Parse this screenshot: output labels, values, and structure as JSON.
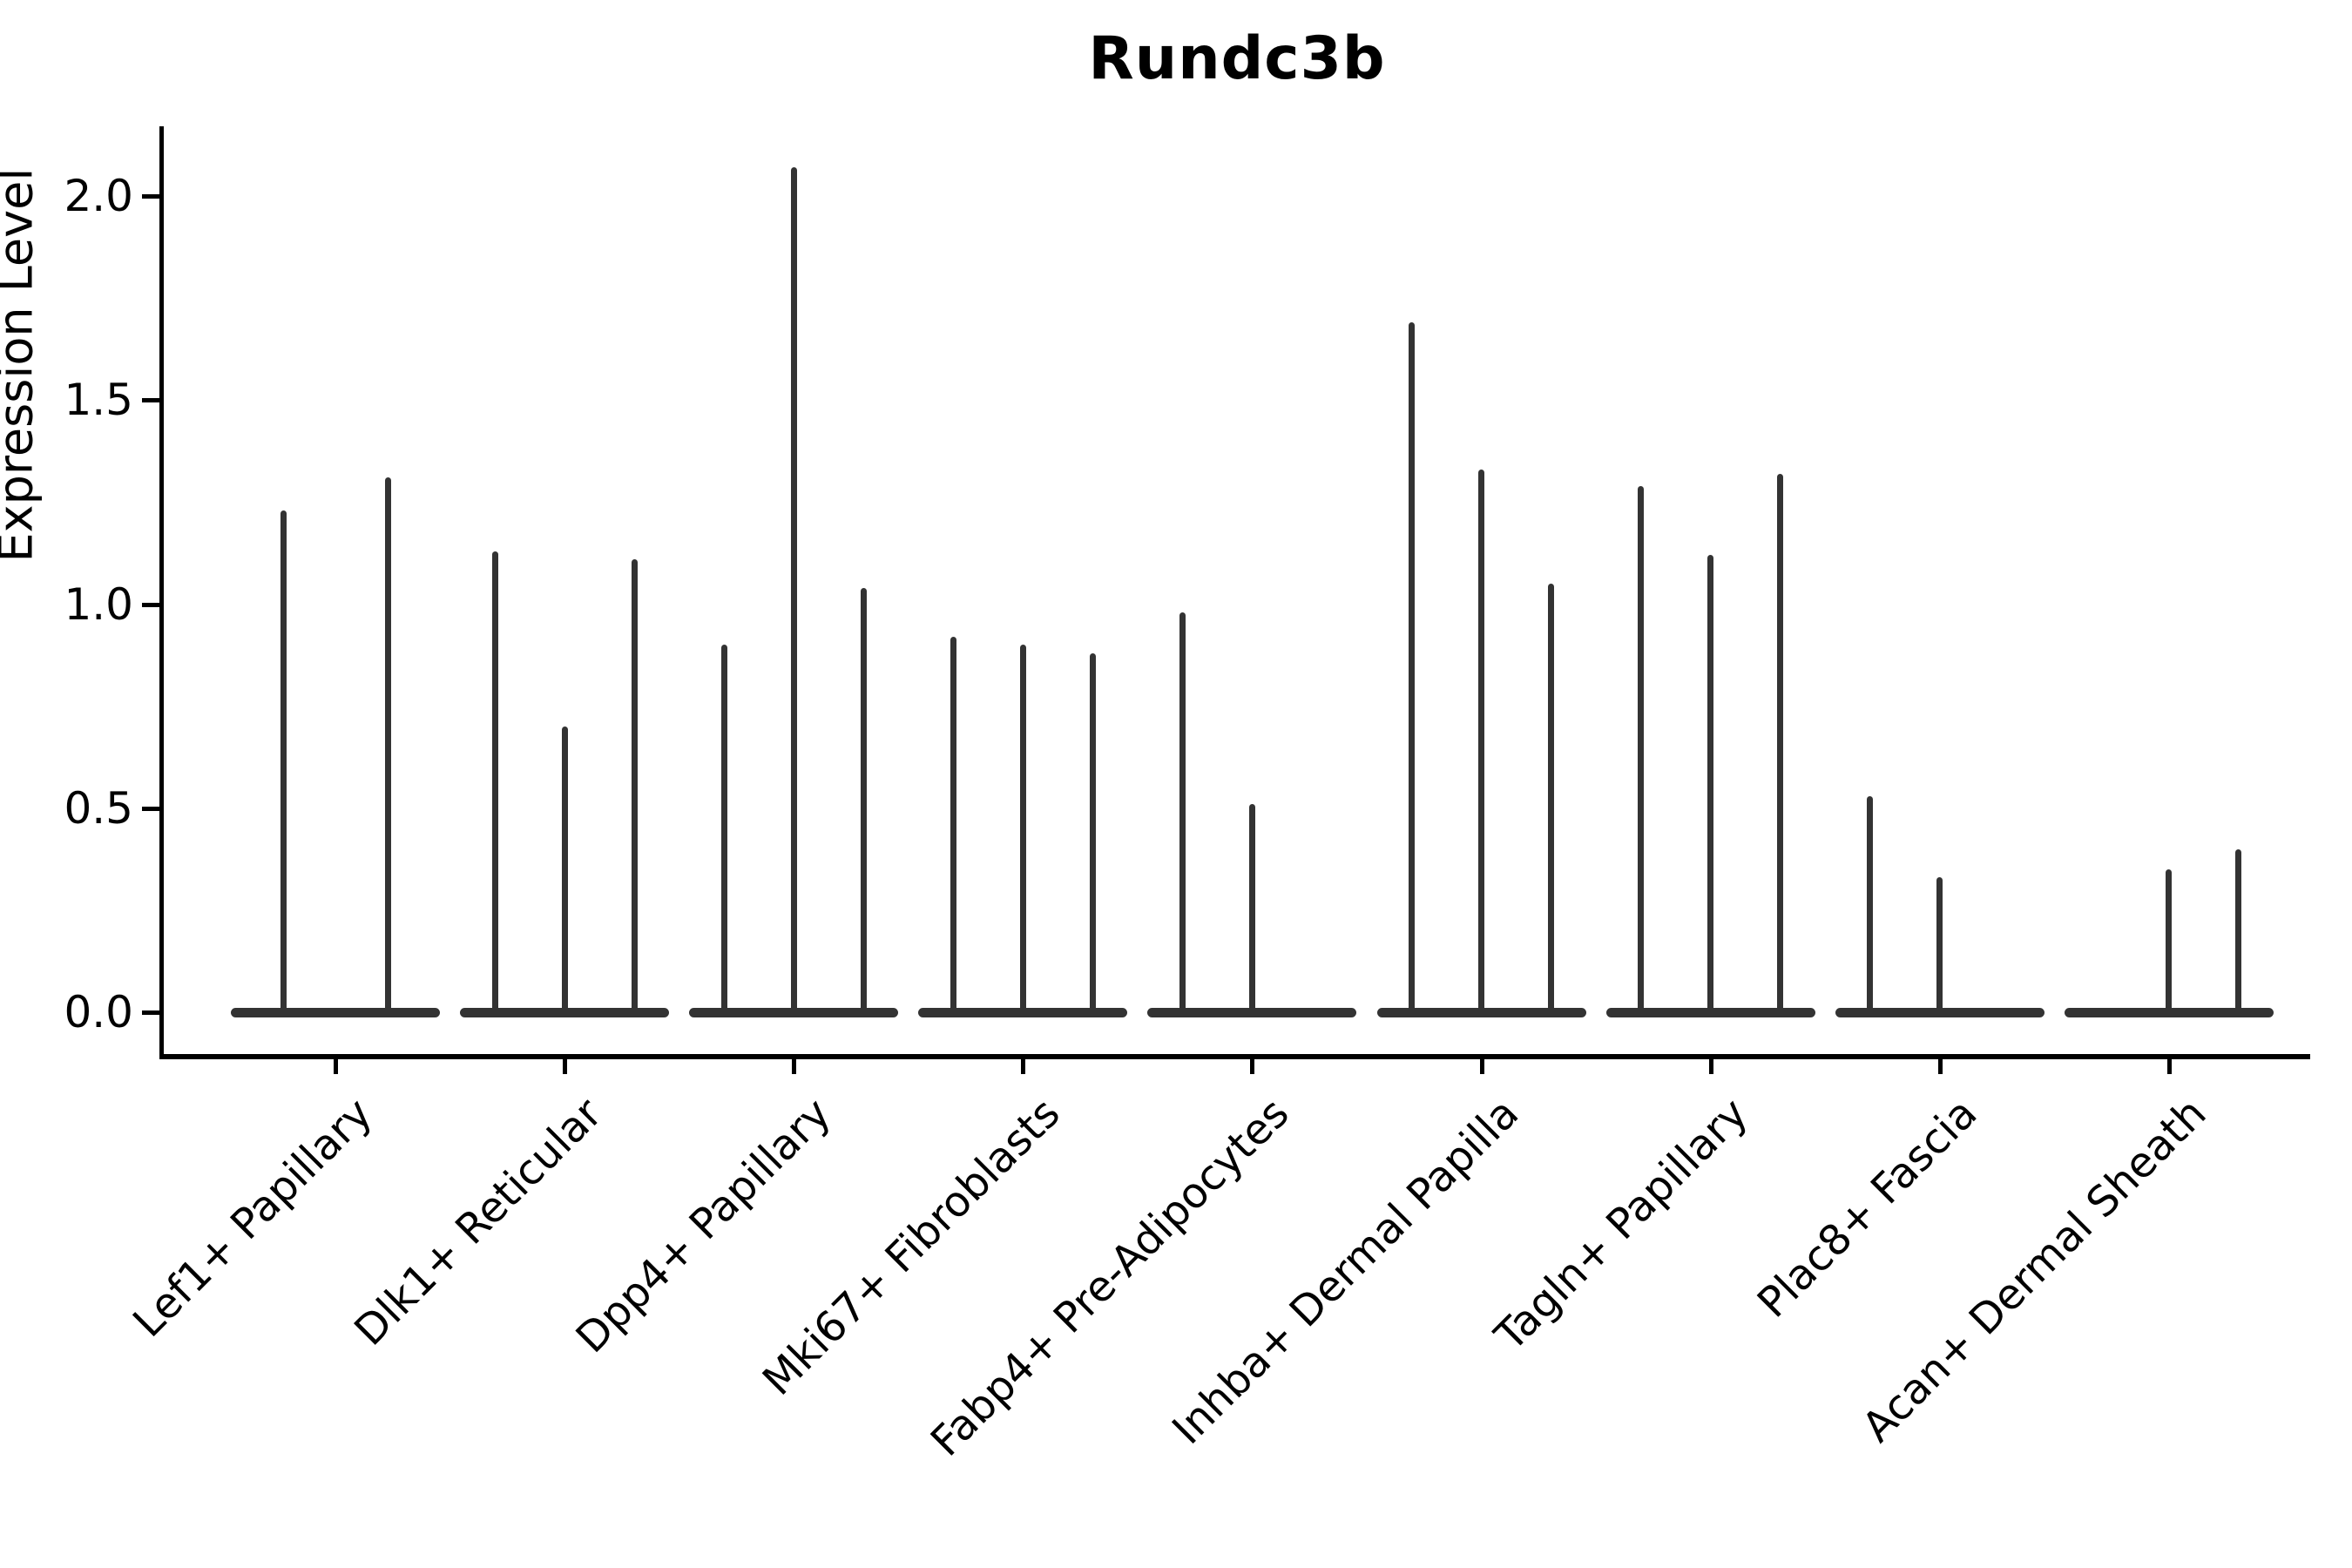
{
  "chart_data": {
    "type": "violin",
    "title": "Rundc3b",
    "xlabel": "",
    "ylabel": "Expression Level",
    "ylim": [
      0,
      2.15
    ],
    "yticks": [
      "0.0",
      "0.5",
      "1.0",
      "1.5",
      "2.0"
    ],
    "grid": false,
    "legend": "none",
    "description": "Stacked violin plot of gene expression; each cell-type group contains narrow spike-shaped violins (one per sample) rising from a wide flat base at expression 0 to the listed maximum expression value. A value of 0 means a flat violin (base only, no spike).",
    "categories": [
      "Lef1+ Papillary",
      "Dlk1+ Reticular",
      "Dpp4+ Papillary",
      "Mki67+ Fibroblasts",
      "Fabp4+ Pre-Adipocytes",
      "Inhba+ Dermal Papilla",
      "Tagln+ Papillary",
      "Plac8+ Fascia",
      "Acan+ Dermal Sheath"
    ],
    "groups": [
      {
        "category": "Lef1+ Papillary",
        "violin_max": [
          1.23,
          1.31
        ]
      },
      {
        "category": "Dlk1+ Reticular",
        "violin_max": [
          1.13,
          0.7,
          1.11
        ]
      },
      {
        "category": "Dpp4+ Papillary",
        "violin_max": [
          0.9,
          2.07,
          1.04
        ]
      },
      {
        "category": "Mki67+ Fibroblasts",
        "violin_max": [
          0.92,
          0.9,
          0.88
        ]
      },
      {
        "category": "Fabp4+ Pre-Adipocytes",
        "violin_max": [
          0.98,
          0.51,
          0
        ]
      },
      {
        "category": "Inhba+ Dermal Papilla",
        "violin_max": [
          1.69,
          1.33,
          1.05
        ]
      },
      {
        "category": "Tagln+ Papillary",
        "violin_max": [
          1.29,
          1.12,
          1.32
        ]
      },
      {
        "category": "Plac8+ Fascia",
        "violin_max": [
          0.53,
          0.33,
          0
        ]
      },
      {
        "category": "Acan+ Dermal Sheath",
        "violin_max": [
          0,
          0.35,
          0.4
        ]
      }
    ],
    "colors": {
      "violin": "#333333",
      "axis": "#000000",
      "text": "#000000",
      "background": "#ffffff"
    }
  }
}
